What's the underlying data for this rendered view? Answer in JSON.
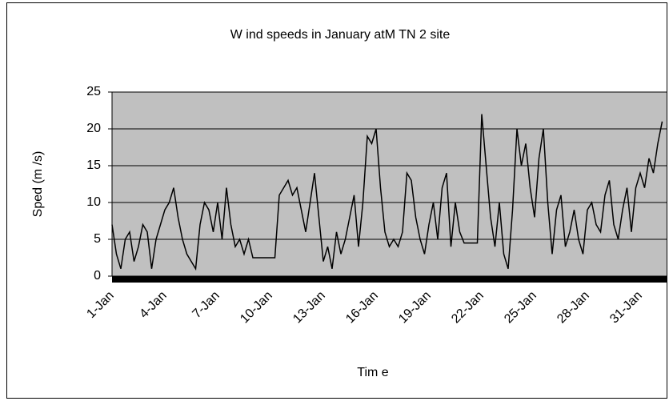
{
  "chart_data": {
    "type": "line",
    "title": "W ind speeds in January atM TN 2 site",
    "x_label": "Tim e",
    "y_label": "Sped (m /s)",
    "categories": [
      "1-Jan",
      null,
      null,
      null,
      null,
      null,
      null,
      null,
      null,
      null,
      null,
      null,
      "4-Jan",
      null,
      null,
      null,
      null,
      null,
      null,
      null,
      null,
      null,
      null,
      null,
      "7-Jan",
      null,
      null,
      null,
      null,
      null,
      null,
      null,
      null,
      null,
      null,
      null,
      "10-Jan",
      null,
      null,
      null,
      null,
      null,
      null,
      null,
      null,
      null,
      null,
      null,
      "13-Jan",
      null,
      null,
      null,
      null,
      null,
      null,
      null,
      null,
      null,
      null,
      null,
      "16-Jan",
      null,
      null,
      null,
      null,
      null,
      null,
      null,
      null,
      null,
      null,
      null,
      "19-Jan",
      null,
      null,
      null,
      null,
      null,
      null,
      null,
      null,
      null,
      null,
      null,
      "22-Jan",
      null,
      null,
      null,
      null,
      null,
      null,
      null,
      null,
      null,
      null,
      null,
      "25-Jan",
      null,
      null,
      null,
      null,
      null,
      null,
      null,
      null,
      null,
      null,
      null,
      "28-Jan",
      null,
      null,
      null,
      null,
      null,
      null,
      null,
      null,
      null,
      null,
      null,
      "31-Jan",
      null,
      null,
      null,
      null,
      null
    ],
    "values": [
      7,
      3,
      1,
      5,
      6,
      2,
      4,
      7,
      6,
      1,
      5,
      7,
      9,
      10,
      12,
      8,
      5,
      3,
      2,
      1,
      7,
      10,
      9,
      6,
      10,
      5,
      12,
      7,
      4,
      5,
      3,
      5,
      2.5,
      2.5,
      2.5,
      2.5,
      2.5,
      2.5,
      11,
      12,
      13,
      11,
      12,
      9,
      6,
      10,
      14,
      8,
      2,
      4,
      1,
      6,
      3,
      5,
      8,
      11,
      4,
      10,
      19,
      18,
      20,
      12,
      6,
      4,
      5,
      4,
      6,
      14,
      13,
      8,
      5,
      3,
      7,
      10,
      5,
      12,
      14,
      4,
      10,
      6,
      4.5,
      4.5,
      4.5,
      4.5,
      22,
      15,
      8,
      4,
      10,
      3,
      1,
      9,
      20,
      15,
      18,
      12,
      8,
      16,
      20,
      10,
      3,
      9,
      11,
      4,
      6,
      9,
      5,
      3,
      9,
      10,
      7,
      6,
      11,
      13,
      7,
      5,
      9,
      12,
      6,
      12,
      14,
      12,
      16,
      14,
      18,
      21
    ],
    "color": "#000000",
    "background": "#c0c0c0",
    "ylim": [
      0,
      25
    ],
    "yticks": [
      0,
      5,
      10,
      15,
      20,
      25
    ],
    "grid": true
  }
}
